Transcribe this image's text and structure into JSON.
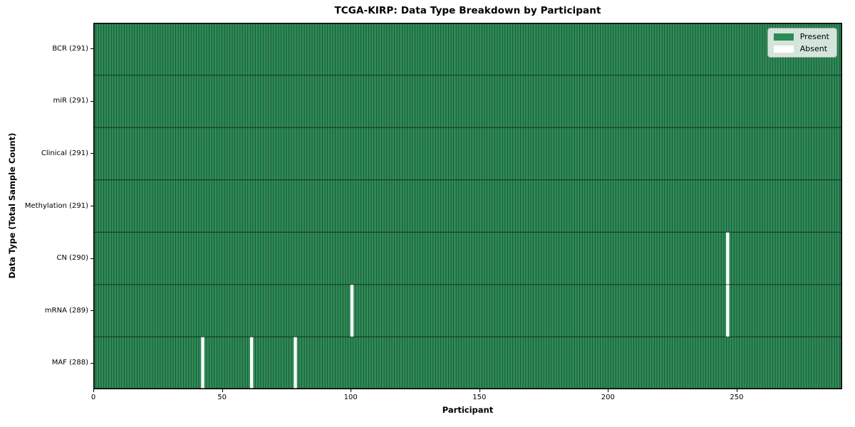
{
  "figure": {
    "title": "TCGA-KIRP: Data Type Breakdown by Participant",
    "xlabel": "Participant",
    "ylabel": "Data Type (Total Sample Count)"
  },
  "legend": {
    "items": [
      {
        "name": "present",
        "label": "Present",
        "color": "#2e8b57"
      },
      {
        "name": "absent",
        "label": "Absent",
        "color": "#ffffff"
      }
    ]
  },
  "chart_data": {
    "type": "heatmap",
    "title": "TCGA-KIRP: Data Type Breakdown by Participant",
    "xlabel": "Participant",
    "ylabel": "Data Type (Total Sample Count)",
    "n_participants": 291,
    "x_range": [
      0,
      291
    ],
    "x_ticks": [
      0,
      50,
      100,
      150,
      200,
      250
    ],
    "grid": false,
    "legend_position": "upper right",
    "cell_colors": {
      "present": "#2e8b57",
      "absent": "#ffffff"
    },
    "rows": [
      {
        "label": "BCR (291)",
        "data_type": "BCR",
        "present_count": 291,
        "absent_participants": []
      },
      {
        "label": "miR (291)",
        "data_type": "miR",
        "present_count": 291,
        "absent_participants": []
      },
      {
        "label": "Clinical (291)",
        "data_type": "Clinical",
        "present_count": 291,
        "absent_participants": []
      },
      {
        "label": "Methylation (291)",
        "data_type": "Methylation",
        "present_count": 291,
        "absent_participants": []
      },
      {
        "label": "CN (290)",
        "data_type": "CN",
        "present_count": 290,
        "absent_participants": [
          246
        ]
      },
      {
        "label": "mRNA (289)",
        "data_type": "mRNA",
        "present_count": 289,
        "absent_participants": [
          100,
          246
        ]
      },
      {
        "label": "MAF (288)",
        "data_type": "MAF",
        "present_count": 288,
        "absent_participants": [
          42,
          61,
          78
        ]
      }
    ]
  }
}
